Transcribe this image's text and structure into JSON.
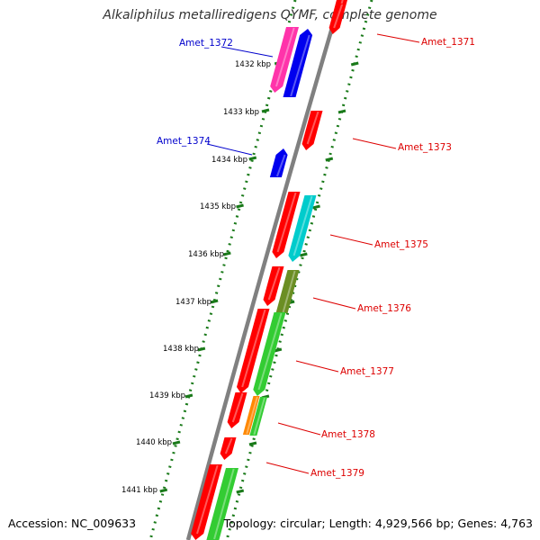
{
  "title": "Alkaliphilus metalliredigens QYMF, complete genome",
  "footer": {
    "accession": "Accession: NC_009633",
    "summary": "Topology: circular; Length: 4,929,566 bp; Genes: 4,763"
  },
  "colors": {
    "backbone": "#808080",
    "ticks": "#1a7a1a",
    "forward_label": "#0000cc",
    "reverse_label": "#dd0000"
  },
  "kbp_labels": [
    "1432 kbp",
    "1433 kbp",
    "1434 kbp",
    "1435 kbp",
    "1436 kbp",
    "1437 kbp",
    "1438 kbp",
    "1439 kbp",
    "1440 kbp",
    "1441 kbp"
  ],
  "gene_labels": [
    {
      "text": "Amet_1372",
      "color": "#0000cc"
    },
    {
      "text": "Amet_1374",
      "color": "#0000cc"
    },
    {
      "text": "Amet_1371",
      "color": "#dd0000"
    },
    {
      "text": "Amet_1373",
      "color": "#dd0000"
    },
    {
      "text": "Amet_1375",
      "color": "#dd0000"
    },
    {
      "text": "Amet_1376",
      "color": "#dd0000"
    },
    {
      "text": "Amet_1377",
      "color": "#dd0000"
    },
    {
      "text": "Amet_1378",
      "color": "#dd0000"
    },
    {
      "text": "Amet_1379",
      "color": "#dd0000"
    }
  ]
}
